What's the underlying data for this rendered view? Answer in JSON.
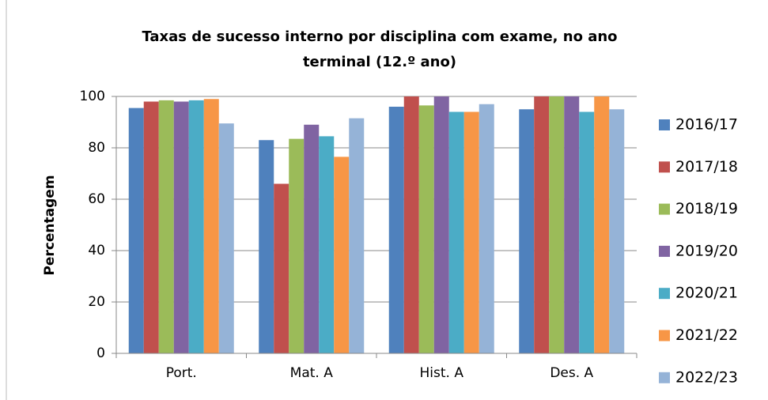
{
  "chart_data": {
    "type": "bar",
    "title_lines": [
      "Taxas de sucesso interno por disciplina com exame, no ano",
      "terminal (12.º ano)"
    ],
    "y_label": "Percentagem",
    "categories": [
      "Port.",
      "Mat. A",
      "Hist. A",
      "Des. A"
    ],
    "series": [
      {
        "name": "2016/17",
        "color": "#4F81BD",
        "values": [
          95.5,
          83,
          96,
          95
        ]
      },
      {
        "name": "2017/18",
        "color": "#C0504D",
        "values": [
          98,
          66,
          100,
          100
        ]
      },
      {
        "name": "2018/19",
        "color": "#9BBB59",
        "values": [
          98.5,
          83.5,
          96.5,
          100
        ]
      },
      {
        "name": "2019/20",
        "color": "#8064A2",
        "values": [
          98,
          89,
          100,
          100
        ]
      },
      {
        "name": "2020/21",
        "color": "#4BACC6",
        "values": [
          98.5,
          84.5,
          94,
          94
        ]
      },
      {
        "name": "2021/22",
        "color": "#F79646",
        "values": [
          99,
          76.5,
          94,
          100
        ]
      },
      {
        "name": "2022/23",
        "color": "#95B3D7",
        "values": [
          89.5,
          91.5,
          97,
          95
        ]
      }
    ],
    "ylim": [
      0,
      100
    ],
    "yticks": [
      0,
      20,
      40,
      60,
      80,
      100
    ],
    "grid": true,
    "legend": "right"
  }
}
